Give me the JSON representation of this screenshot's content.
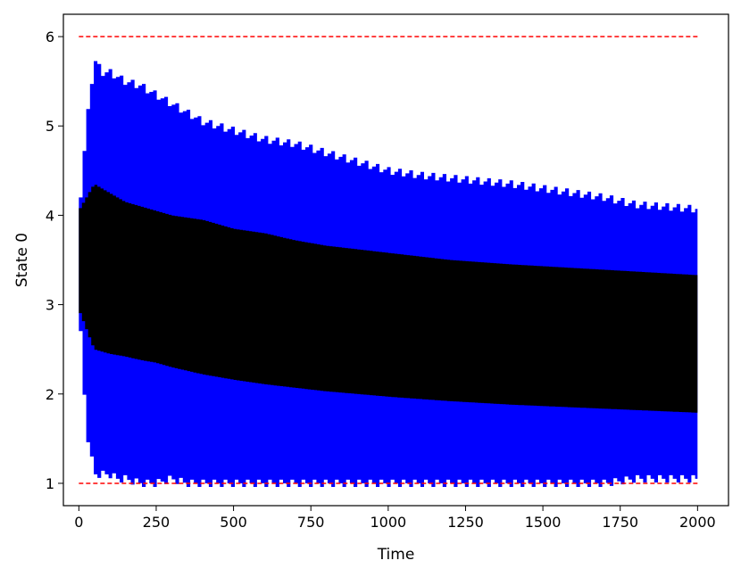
{
  "chart_data": {
    "type": "area",
    "xlabel": "Time",
    "ylabel": "State 0",
    "xlim": [
      -50,
      2100
    ],
    "ylim": [
      0.75,
      6.25
    ],
    "xticks": [
      0,
      250,
      500,
      750,
      1000,
      1250,
      1500,
      1750,
      2000
    ],
    "yticks": [
      1,
      2,
      3,
      4,
      5,
      6
    ],
    "grid": false,
    "colors": {
      "outer_band": "#0000ff",
      "inner_band": "#000000",
      "bounds": "#ff0000"
    },
    "bounds": {
      "x": [
        0,
        2000
      ],
      "lower": 1,
      "upper": 6,
      "style": "dashed"
    },
    "series": [
      {
        "role": "outer-band",
        "color": "#0000ff",
        "x": [
          0,
          25,
          50,
          75,
          100,
          125,
          150,
          200,
          250,
          300,
          350,
          400,
          500,
          600,
          700,
          800,
          900,
          1000,
          1100,
          1250,
          1400,
          1500,
          1600,
          1700,
          1800,
          2000
        ],
        "upper": [
          4.0,
          5.0,
          5.75,
          5.6,
          5.6,
          5.55,
          5.5,
          5.45,
          5.35,
          5.25,
          5.15,
          5.05,
          4.95,
          4.85,
          4.8,
          4.7,
          4.6,
          4.5,
          4.45,
          4.4,
          4.35,
          4.3,
          4.25,
          4.2,
          4.12,
          4.07
        ],
        "lower": [
          3.0,
          1.6,
          1.1,
          1.1,
          1.1,
          1.05,
          1.05,
          1.0,
          1.0,
          1.05,
          1.0,
          1.0,
          1.0,
          1.0,
          1.0,
          1.0,
          1.0,
          1.0,
          1.0,
          1.0,
          1.0,
          1.0,
          1.0,
          1.0,
          1.05,
          1.05
        ]
      },
      {
        "role": "inner-band",
        "color": "#000000",
        "x": [
          0,
          50,
          100,
          150,
          200,
          250,
          300,
          400,
          500,
          600,
          700,
          800,
          1000,
          1200,
          1400,
          1600,
          1800,
          2000
        ],
        "upper": [
          4.05,
          4.35,
          4.25,
          4.15,
          4.1,
          4.05,
          4.0,
          3.95,
          3.85,
          3.8,
          3.72,
          3.66,
          3.58,
          3.5,
          3.45,
          3.41,
          3.37,
          3.33
        ],
        "lower": [
          2.95,
          2.5,
          2.45,
          2.42,
          2.38,
          2.35,
          2.3,
          2.22,
          2.16,
          2.11,
          2.07,
          2.03,
          1.97,
          1.92,
          1.88,
          1.85,
          1.82,
          1.79
        ]
      }
    ]
  }
}
